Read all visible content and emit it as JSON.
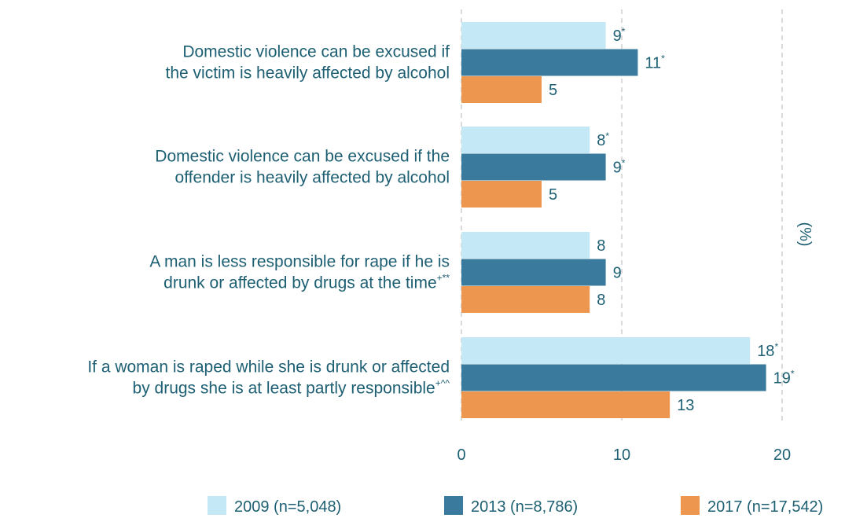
{
  "chart_data": {
    "type": "bar",
    "orientation": "horizontal",
    "xlabel": "(%)",
    "xlim": [
      0,
      20
    ],
    "xticks": [
      0,
      10,
      20
    ],
    "grid": "vertical-dashed",
    "legend_position": "bottom",
    "categories": [
      {
        "lines": [
          "Domestic violence can be excused if",
          "the victim is heavily affected by alcohol"
        ],
        "sup": ""
      },
      {
        "lines": [
          "Domestic violence can be excused if the",
          "offender is heavily affected by alcohol"
        ],
        "sup": ""
      },
      {
        "lines": [
          "A man is less responsible for rape if he is",
          "drunk or affected by drugs at the time"
        ],
        "sup": "+**"
      },
      {
        "lines": [
          "If a woman is raped while she is drunk or affected",
          "by drugs she is at least partly responsible"
        ],
        "sup": "+^^"
      }
    ],
    "series": [
      {
        "name": "2009 (n=5,048)",
        "color": "#c5e8f7",
        "values": [
          9,
          8,
          8,
          18
        ],
        "markers": [
          "*",
          "*",
          "",
          "*"
        ]
      },
      {
        "name": "2013 (n=8,786)",
        "color": "#3a7a9c",
        "values": [
          11,
          9,
          9,
          19
        ],
        "markers": [
          "*",
          "*",
          "",
          "*"
        ]
      },
      {
        "name": "2017 (n=17,542)",
        "color": "#ed9650",
        "values": [
          5,
          5,
          8,
          13
        ],
        "markers": [
          "",
          "",
          "",
          ""
        ]
      }
    ]
  }
}
